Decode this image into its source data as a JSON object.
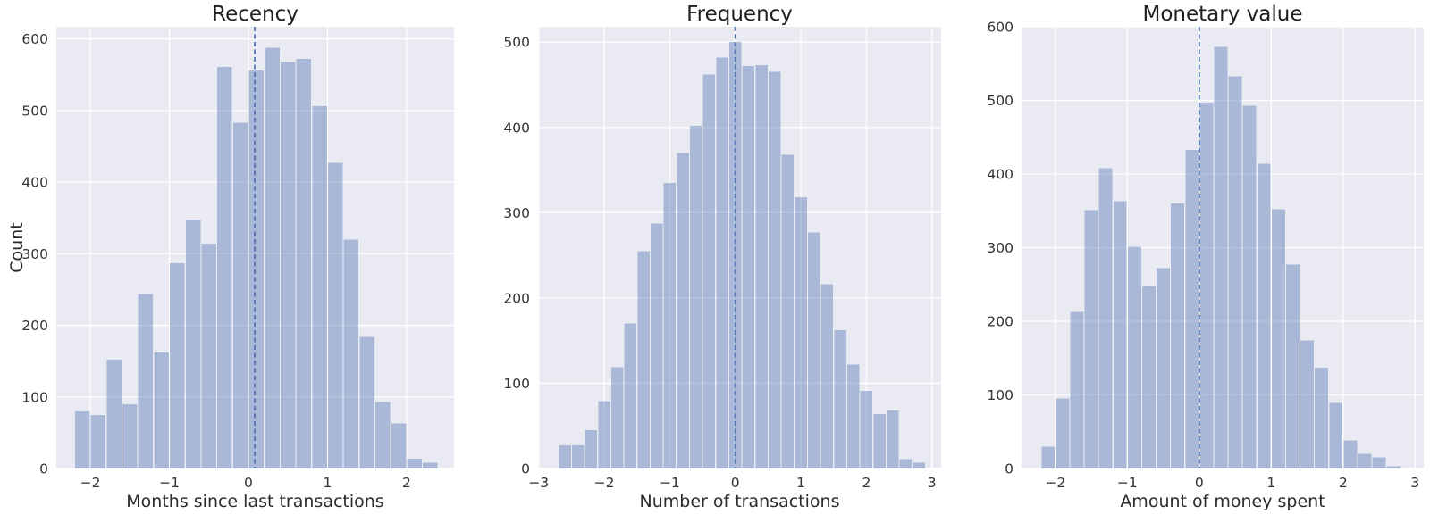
{
  "figure": {
    "background": "#ffffff",
    "axes_background": "#eaeaf2",
    "grid_color": "#ffffff",
    "bar_color": "#4c72b0",
    "bar_opacity": 0.42,
    "vline_color": "#4c72b0",
    "text_color": "#262626",
    "shared_ylabel": "Count"
  },
  "chart_data": [
    {
      "type": "bar",
      "title": "Recency",
      "xlabel": "Months since last transactions",
      "ylabel": "Count",
      "bin_start": -2.2,
      "bin_width": 0.2,
      "counts": [
        80,
        75,
        152,
        90,
        244,
        162,
        287,
        348,
        314,
        561,
        483,
        556,
        588,
        568,
        572,
        506,
        427,
        320,
        184,
        93,
        63,
        14,
        8
      ],
      "vline_x": 0.08,
      "xticks": [
        -2,
        -1,
        0,
        1,
        2
      ],
      "yticks": [
        0,
        100,
        200,
        300,
        400,
        500,
        600
      ],
      "xlim": [
        -2.43,
        2.6
      ],
      "ylim": [
        0,
        617
      ],
      "grid": true,
      "legend": "none"
    },
    {
      "type": "bar",
      "title": "Frequency",
      "xlabel": "Number of transactions",
      "ylabel": "",
      "bin_start": -2.7,
      "bin_width": 0.2,
      "counts": [
        27,
        27,
        45,
        79,
        119,
        170,
        255,
        287,
        335,
        370,
        402,
        462,
        482,
        500,
        472,
        473,
        465,
        368,
        318,
        277,
        216,
        162,
        122,
        91,
        64,
        68,
        11,
        7
      ],
      "vline_x": 0.0,
      "xticks": [
        -3,
        -2,
        -1,
        0,
        1,
        2,
        3
      ],
      "yticks": [
        0,
        100,
        200,
        300,
        400,
        500
      ],
      "xlim": [
        -3.01,
        3.14
      ],
      "ylim": [
        0,
        518
      ],
      "grid": true,
      "legend": "none"
    },
    {
      "type": "bar",
      "title": "Monetary value",
      "xlabel": "Amount of money spent",
      "ylabel": "",
      "bin_start": -2.2,
      "bin_width": 0.2,
      "counts": [
        30,
        95,
        213,
        351,
        408,
        363,
        301,
        248,
        272,
        360,
        433,
        497,
        573,
        533,
        493,
        414,
        352,
        277,
        174,
        137,
        89,
        38,
        20,
        15,
        3
      ],
      "vline_x": 0.0,
      "xticks": [
        -2,
        -1,
        0,
        1,
        2,
        3
      ],
      "yticks": [
        0,
        100,
        200,
        300,
        400,
        500,
        600
      ],
      "xlim": [
        -2.47,
        3.12
      ],
      "ylim": [
        0,
        600
      ],
      "grid": true,
      "legend": "none"
    }
  ]
}
